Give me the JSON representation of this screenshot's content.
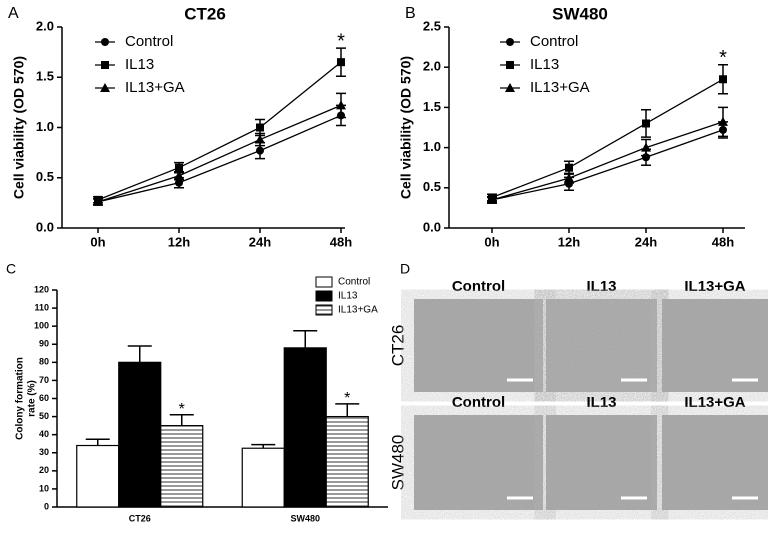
{
  "chart_data": [
    {
      "type": "line",
      "panel": "A",
      "title": "CT26",
      "ylabel": "Cell viability (OD 570)",
      "categories": [
        "0h",
        "12h",
        "24h",
        "48h"
      ],
      "ylim": [
        0,
        2
      ],
      "yticks": [
        {
          "value": 0,
          "label": "0.0"
        },
        {
          "value": 0.5,
          "label": "0.5"
        },
        {
          "value": 1,
          "label": "1.0"
        },
        {
          "value": 1.5,
          "label": "1.5"
        },
        {
          "value": 2,
          "label": "2.0"
        }
      ],
      "series": [
        {
          "name": "Control",
          "color": "#000000",
          "marker": "circle",
          "values": [
            0.26,
            0.45,
            0.77,
            1.12
          ],
          "errors": [
            0.03,
            0.05,
            0.08,
            0.1
          ]
        },
        {
          "name": "IL13",
          "color": "#000000",
          "marker": "square",
          "values": [
            0.28,
            0.6,
            1.0,
            1.65
          ],
          "errors": [
            0.03,
            0.05,
            0.08,
            0.14
          ]
        },
        {
          "name": "IL13+GA",
          "color": "#000000",
          "marker": "triangle",
          "values": [
            0.26,
            0.52,
            0.88,
            1.22
          ],
          "errors": [
            0.03,
            0.04,
            0.06,
            0.12
          ]
        }
      ],
      "annotations": [
        "*"
      ]
    },
    {
      "type": "line",
      "panel": "B",
      "title": "SW480",
      "ylabel": "Cell viability (OD 570)",
      "categories": [
        "0h",
        "12h",
        "24h",
        "48h"
      ],
      "ylim": [
        0,
        2.5
      ],
      "yticks": [
        {
          "value": 0,
          "label": "0.0"
        },
        {
          "value": 0.5,
          "label": "0.5"
        },
        {
          "value": 1,
          "label": "1.0"
        },
        {
          "value": 1.5,
          "label": "1.5"
        },
        {
          "value": 2,
          "label": "2.0"
        },
        {
          "value": 2.5,
          "label": "2.5"
        }
      ],
      "series": [
        {
          "name": "Control",
          "color": "#000000",
          "marker": "circle",
          "values": [
            0.35,
            0.55,
            0.88,
            1.22
          ],
          "errors": [
            0.04,
            0.08,
            0.1,
            0.1
          ]
        },
        {
          "name": "IL13",
          "color": "#000000",
          "marker": "square",
          "values": [
            0.38,
            0.75,
            1.3,
            1.85
          ],
          "errors": [
            0.04,
            0.08,
            0.17,
            0.18
          ]
        },
        {
          "name": "IL13+GA",
          "color": "#000000",
          "marker": "triangle",
          "values": [
            0.35,
            0.62,
            1.0,
            1.32
          ],
          "errors": [
            0.03,
            0.06,
            0.1,
            0.18
          ]
        }
      ],
      "annotations": [
        "*"
      ]
    },
    {
      "type": "bar",
      "panel": "C",
      "ylabel": [
        "Colony formation",
        "rate (%)"
      ],
      "categories": [
        "CT26",
        "SW480"
      ],
      "ylim": [
        0,
        120
      ],
      "yticks": [
        0,
        10,
        20,
        30,
        40,
        50,
        60,
        70,
        80,
        90,
        100,
        110,
        120
      ],
      "series": [
        {
          "name": "Control",
          "color": "#ffffff",
          "values": [
            34,
            32.5
          ],
          "errors": [
            3.5,
            2
          ]
        },
        {
          "name": "IL13",
          "color": "#000000",
          "values": [
            80,
            88
          ],
          "errors": [
            9,
            9.5
          ]
        },
        {
          "name": "IL13+GA",
          "color": "#ffffff",
          "pattern": "horizontal-lines",
          "values": [
            45,
            50
          ],
          "errors": [
            6,
            7
          ]
        }
      ],
      "annotations": [
        "*",
        "*"
      ]
    }
  ],
  "panel_d": {
    "panel": "D",
    "columns": [
      [
        "Control",
        "IL13",
        "IL13+GA"
      ],
      [
        "Control",
        "IL13",
        "IL13+GA"
      ]
    ],
    "rows": [
      "CT26",
      "SW480"
    ]
  }
}
